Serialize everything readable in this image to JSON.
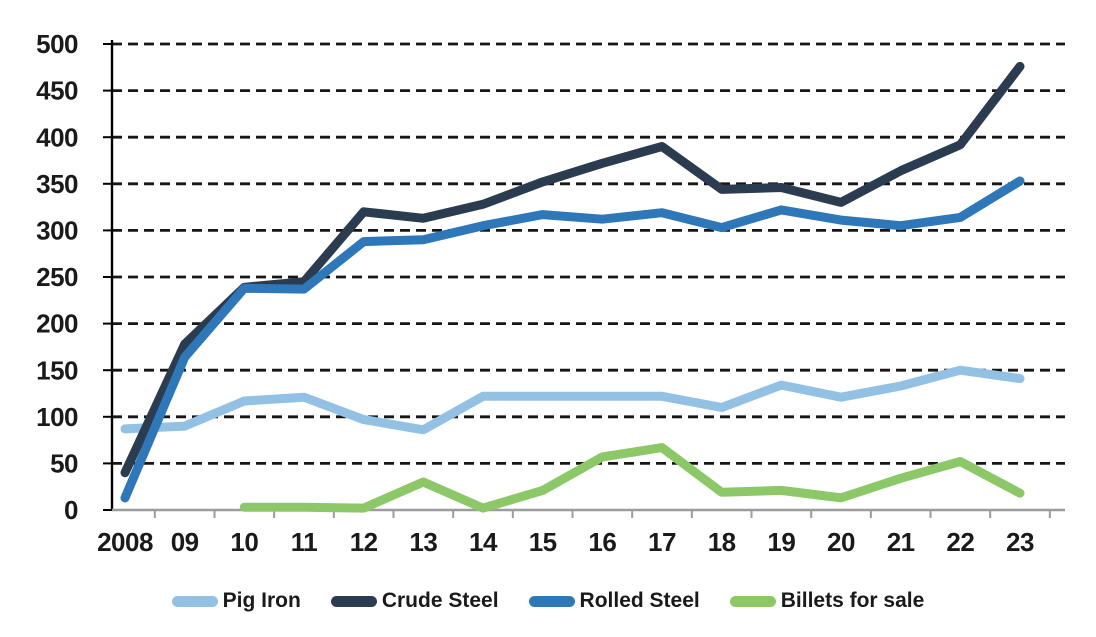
{
  "chart_data": {
    "type": "line",
    "title": "",
    "xlabel": "",
    "ylabel": "",
    "categories": [
      "2008",
      "09",
      "10",
      "11",
      "12",
      "13",
      "14",
      "15",
      "16",
      "17",
      "18",
      "19",
      "20",
      "21",
      "22",
      "23"
    ],
    "series": [
      {
        "name": "Pig Iron",
        "color": "#93C1E4",
        "values": [
          87,
          90,
          117,
          121,
          97,
          86,
          122,
          122,
          122,
          122,
          110,
          134,
          121,
          133,
          150,
          141
        ]
      },
      {
        "name": "Crude Steel",
        "color": "#2B3B50",
        "values": [
          40,
          178,
          239,
          245,
          320,
          313,
          328,
          352,
          372,
          390,
          344,
          346,
          330,
          364,
          392,
          476
        ]
      },
      {
        "name": "Rolled Steel",
        "color": "#2E77B8",
        "values": [
          13,
          164,
          238,
          237,
          288,
          290,
          305,
          317,
          312,
          319,
          303,
          322,
          311,
          305,
          314,
          353
        ]
      },
      {
        "name": "Billets for sale",
        "color": "#8DC868",
        "values": [
          null,
          null,
          3,
          3,
          2,
          30,
          2,
          21,
          57,
          67,
          19,
          21,
          13,
          34,
          52,
          18
        ]
      }
    ],
    "ylim": [
      0,
      500
    ],
    "ytick_step": 50,
    "y_tick_labels": [
      "0",
      "50",
      "100",
      "150",
      "200",
      "250",
      "300",
      "350",
      "400",
      "450",
      "500"
    ],
    "grid": "dashed-horizontal",
    "legend_position": "bottom"
  },
  "colors": {
    "background": "#FFFFFF",
    "gridline": "#161616",
    "y_axis": "#000000",
    "x_axis": "#9C9C9C",
    "label_text": "#1A1A1A"
  }
}
